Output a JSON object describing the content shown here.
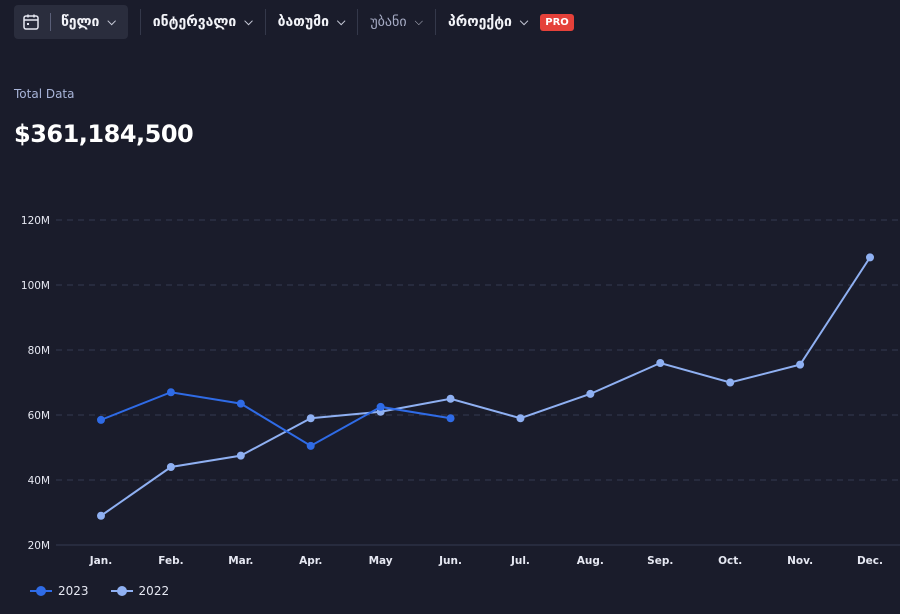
{
  "toolbar": {
    "year": "წელი",
    "interval": "ინტერვალი",
    "city": "ბათუმი",
    "district": "უბანი",
    "project": "პროექტი",
    "pro_badge": "PRO"
  },
  "summary": {
    "label": "Total Data",
    "value": "$361,184,500"
  },
  "colors": {
    "background": "#1a1c2b",
    "series_2023": "#2f6be6",
    "series_2022": "#8fb0f2",
    "grid": "#343a52"
  },
  "chart_data": {
    "type": "line",
    "x": [
      "Jan.",
      "Feb.",
      "Mar.",
      "Apr.",
      "May",
      "Jun.",
      "Jul.",
      "Aug.",
      "Sep.",
      "Oct.",
      "Nov.",
      "Dec."
    ],
    "series": [
      {
        "name": "2023",
        "values": [
          58.5,
          67,
          63.5,
          50.5,
          62.5,
          59,
          null,
          null,
          null,
          null,
          null,
          null
        ]
      },
      {
        "name": "2022",
        "values": [
          29,
          44,
          47.5,
          59,
          61,
          65,
          59,
          66.5,
          76,
          70,
          75.5,
          108.5
        ]
      }
    ],
    "yticks": [
      "20M",
      "40M",
      "60M",
      "80M",
      "100M",
      "120M"
    ],
    "ylim": [
      20,
      120
    ],
    "grid": true,
    "legend": "bottom-left"
  }
}
